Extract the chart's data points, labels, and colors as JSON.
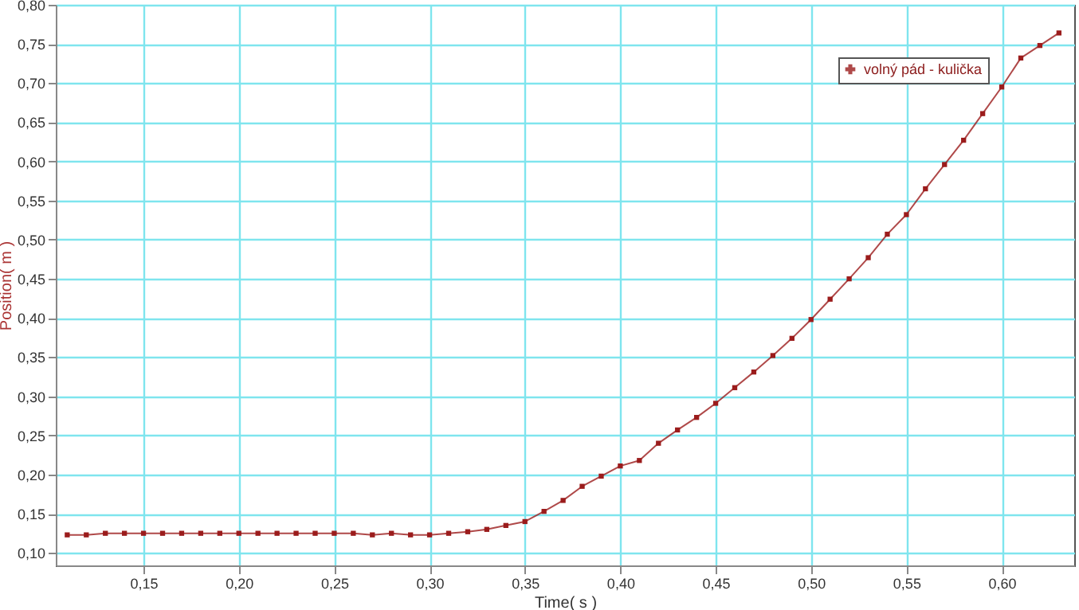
{
  "chart_data": {
    "type": "line",
    "xlabel": "Time( s )",
    "ylabel": "Position( m )",
    "x": [
      0.11,
      0.12,
      0.13,
      0.14,
      0.15,
      0.16,
      0.17,
      0.18,
      0.19,
      0.2,
      0.21,
      0.22,
      0.23,
      0.24,
      0.25,
      0.26,
      0.27,
      0.28,
      0.29,
      0.3,
      0.31,
      0.32,
      0.33,
      0.34,
      0.35,
      0.36,
      0.37,
      0.38,
      0.39,
      0.4,
      0.41,
      0.42,
      0.43,
      0.44,
      0.45,
      0.46,
      0.47,
      0.48,
      0.49,
      0.5,
      0.51,
      0.52,
      0.53,
      0.54,
      0.55,
      0.56,
      0.57,
      0.58,
      0.59,
      0.6,
      0.61,
      0.62,
      0.63
    ],
    "series": [
      {
        "name": "volný pád - kulička",
        "color": "#9b1c1c",
        "values": [
          0.123,
          0.123,
          0.125,
          0.125,
          0.125,
          0.125,
          0.125,
          0.125,
          0.125,
          0.125,
          0.125,
          0.125,
          0.125,
          0.125,
          0.125,
          0.125,
          0.123,
          0.125,
          0.123,
          0.123,
          0.125,
          0.127,
          0.13,
          0.135,
          0.14,
          0.153,
          0.167,
          0.185,
          0.198,
          0.211,
          0.218,
          0.24,
          0.257,
          0.273,
          0.291,
          0.311,
          0.331,
          0.352,
          0.374,
          0.398,
          0.424,
          0.45,
          0.477,
          0.507,
          0.532,
          0.565,
          0.596,
          0.627,
          0.661,
          0.695,
          0.732,
          0.748,
          0.764
        ]
      }
    ],
    "xlim": [
      0.104,
      0.638
    ],
    "xticks": [
      {
        "value": 0.15,
        "label": "0,15"
      },
      {
        "value": 0.2,
        "label": "0,20"
      },
      {
        "value": 0.25,
        "label": "0,25"
      },
      {
        "value": 0.3,
        "label": "0,30"
      },
      {
        "value": 0.35,
        "label": "0,35"
      },
      {
        "value": 0.4,
        "label": "0,40"
      },
      {
        "value": 0.45,
        "label": "0,45"
      },
      {
        "value": 0.5,
        "label": "0,50"
      },
      {
        "value": 0.55,
        "label": "0,55"
      },
      {
        "value": 0.6,
        "label": "0,60"
      }
    ],
    "ylim": [
      0.084,
      0.8
    ],
    "yticks": [
      {
        "value": 0.1,
        "label": "0,10"
      },
      {
        "value": 0.15,
        "label": "0,15"
      },
      {
        "value": 0.2,
        "label": "0,20"
      },
      {
        "value": 0.25,
        "label": "0,25"
      },
      {
        "value": 0.3,
        "label": "0,30"
      },
      {
        "value": 0.35,
        "label": "0,35"
      },
      {
        "value": 0.4,
        "label": "0,40"
      },
      {
        "value": 0.45,
        "label": "0,45"
      },
      {
        "value": 0.5,
        "label": "0,50"
      },
      {
        "value": 0.55,
        "label": "0,55"
      },
      {
        "value": 0.6,
        "label": "0,60"
      },
      {
        "value": 0.65,
        "label": "0,65"
      },
      {
        "value": 0.7,
        "label": "0,70"
      },
      {
        "value": 0.75,
        "label": "0,75"
      },
      {
        "value": 0.8,
        "label": "0,80"
      }
    ],
    "grid": true,
    "legend": "top right",
    "marker": "square",
    "line_style": "solid"
  }
}
